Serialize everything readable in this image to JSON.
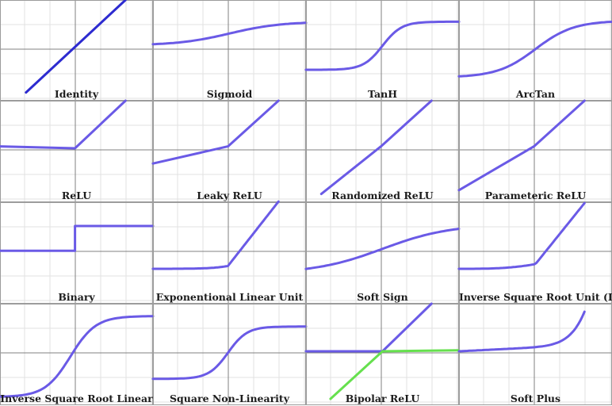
{
  "colors": {
    "background": "#ffffff",
    "minor_grid": "#e2e2e2",
    "major_grid": "#bdbdbd",
    "panel_border": "#9c9c9c",
    "axis": "#808080",
    "curve_identity": "#2d2bd0",
    "curve_default": "#6a5ae6",
    "curve_bipolar_secondary": "#66e04e",
    "label_text": "#1c1c1c"
  },
  "panels": [
    {
      "label": "Identity",
      "curve": "identity",
      "color": "#2d2bd0"
    },
    {
      "label": "Sigmoid",
      "curve": "sigmoid"
    },
    {
      "label": "TanH",
      "curve": "tanh"
    },
    {
      "label": "ArcTan",
      "curve": "arctan"
    },
    {
      "label": "ReLU",
      "curve": "relu"
    },
    {
      "label": "Leaky ReLU",
      "curve": "leaky_relu"
    },
    {
      "label": "Randomized ReLU",
      "curve": "randomized_relu"
    },
    {
      "label": "Parameteric ReLU",
      "curve": "parametric_relu"
    },
    {
      "label": "Binary",
      "curve": "binary"
    },
    {
      "label": "Exponentional Linear Unit",
      "curve": "elu"
    },
    {
      "label": "Soft Sign",
      "curve": "softsign"
    },
    {
      "label": "Inverse Square Root Unit (ISRU)",
      "curve": "isru"
    },
    {
      "label": "Inverse Square Root Linear",
      "curve": "isrlu"
    },
    {
      "label": "Square Non-Linearity",
      "curve": "sqnl"
    },
    {
      "label": "Bipolar ReLU",
      "curve": "bipolar_relu",
      "secondary_color": "#66e04e"
    },
    {
      "label": "Soft Plus",
      "curve": "softplus"
    }
  ]
}
